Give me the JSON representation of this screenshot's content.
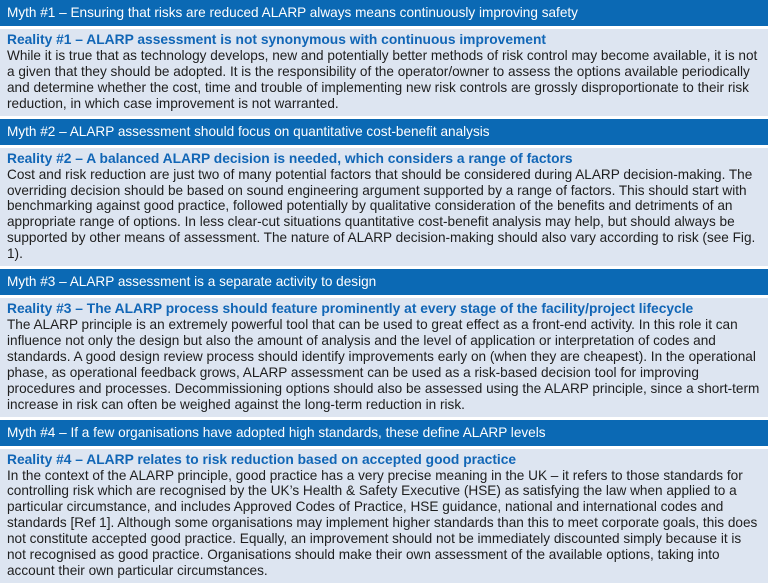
{
  "sections": [
    {
      "myth": "Myth #1 – Ensuring that risks are reduced ALARP always means continuously improving safety",
      "reality_title": "Reality #1 – ALARP assessment is not synonymous with continuous improvement",
      "reality_text": "While it is true that as technology develops, new and potentially better methods of risk control may become available, it is not a given that they should be adopted. It is the responsibility of the operator/owner to assess the options available periodically and determine whether the cost, time and trouble of implementing new risk controls are grossly disproportionate to their risk reduction, in which case improvement is not warranted."
    },
    {
      "myth": "Myth #2 – ALARP assessment should focus on quantitative cost-benefit analysis",
      "reality_title": "Reality #2 – A balanced ALARP decision is needed, which considers a range of factors",
      "reality_text": "Cost and risk reduction are just two of many potential factors that should be considered during ALARP decision-making. The overriding decision should be based on sound engineering argument supported by a range of factors. This should start with benchmarking against good practice, followed potentially by qualitative consideration of the benefits and detriments of an appropriate range of options. In less clear-cut situations quantitative cost-benefit analysis may help, but should always be supported by other means of assessment. The nature of ALARP decision-making should also vary according to risk (see Fig. 1)."
    },
    {
      "myth": "Myth #3 – ALARP assessment is a separate activity to design",
      "reality_title": "Reality #3 – The ALARP process should feature prominently at every stage of the facility/project lifecycle",
      "reality_text": "The ALARP principle is an extremely powerful tool that can be used to great effect as a front-end activity. In this role it can influence not only the design but also the amount of analysis and the level of application or interpretation of codes and standards. A good design review process should identify improvements early on (when they are cheapest). In the operational phase, as operational feedback grows, ALARP assessment can be used as a risk-based decision tool for improving procedures and processes. Decommissioning options should also be assessed using the ALARP principle, since a short-term increase in risk can often be weighed against the long-term reduction in risk."
    },
    {
      "myth": "Myth #4 – If a few organisations have adopted high standards, these define ALARP levels",
      "reality_title": "Reality #4 – ALARP relates to risk reduction based on accepted good practice",
      "reality_text": "In the context of the ALARP principle, good practice has a very precise meaning in the UK – it refers to those standards for controlling risk which are recognised by the UK’s Health & Safety Executive (HSE) as satisfying the law when applied to a particular circumstance, and includes Approved Codes of Practice, HSE guidance, national and international codes and standards [Ref 1]. Although some organisations may implement higher standards than this to meet corporate goals, this does not constitute accepted good practice. Equally, an improvement should not be immediately discounted simply because it is not recognised as good practice. Organisations should make their own assessment of the available options, taking into account their own particular circumstances."
    }
  ],
  "colors": {
    "myth_bg": "#0b69b4",
    "reality_bg": "#dde5f1",
    "reality_title": "#1166b6"
  }
}
